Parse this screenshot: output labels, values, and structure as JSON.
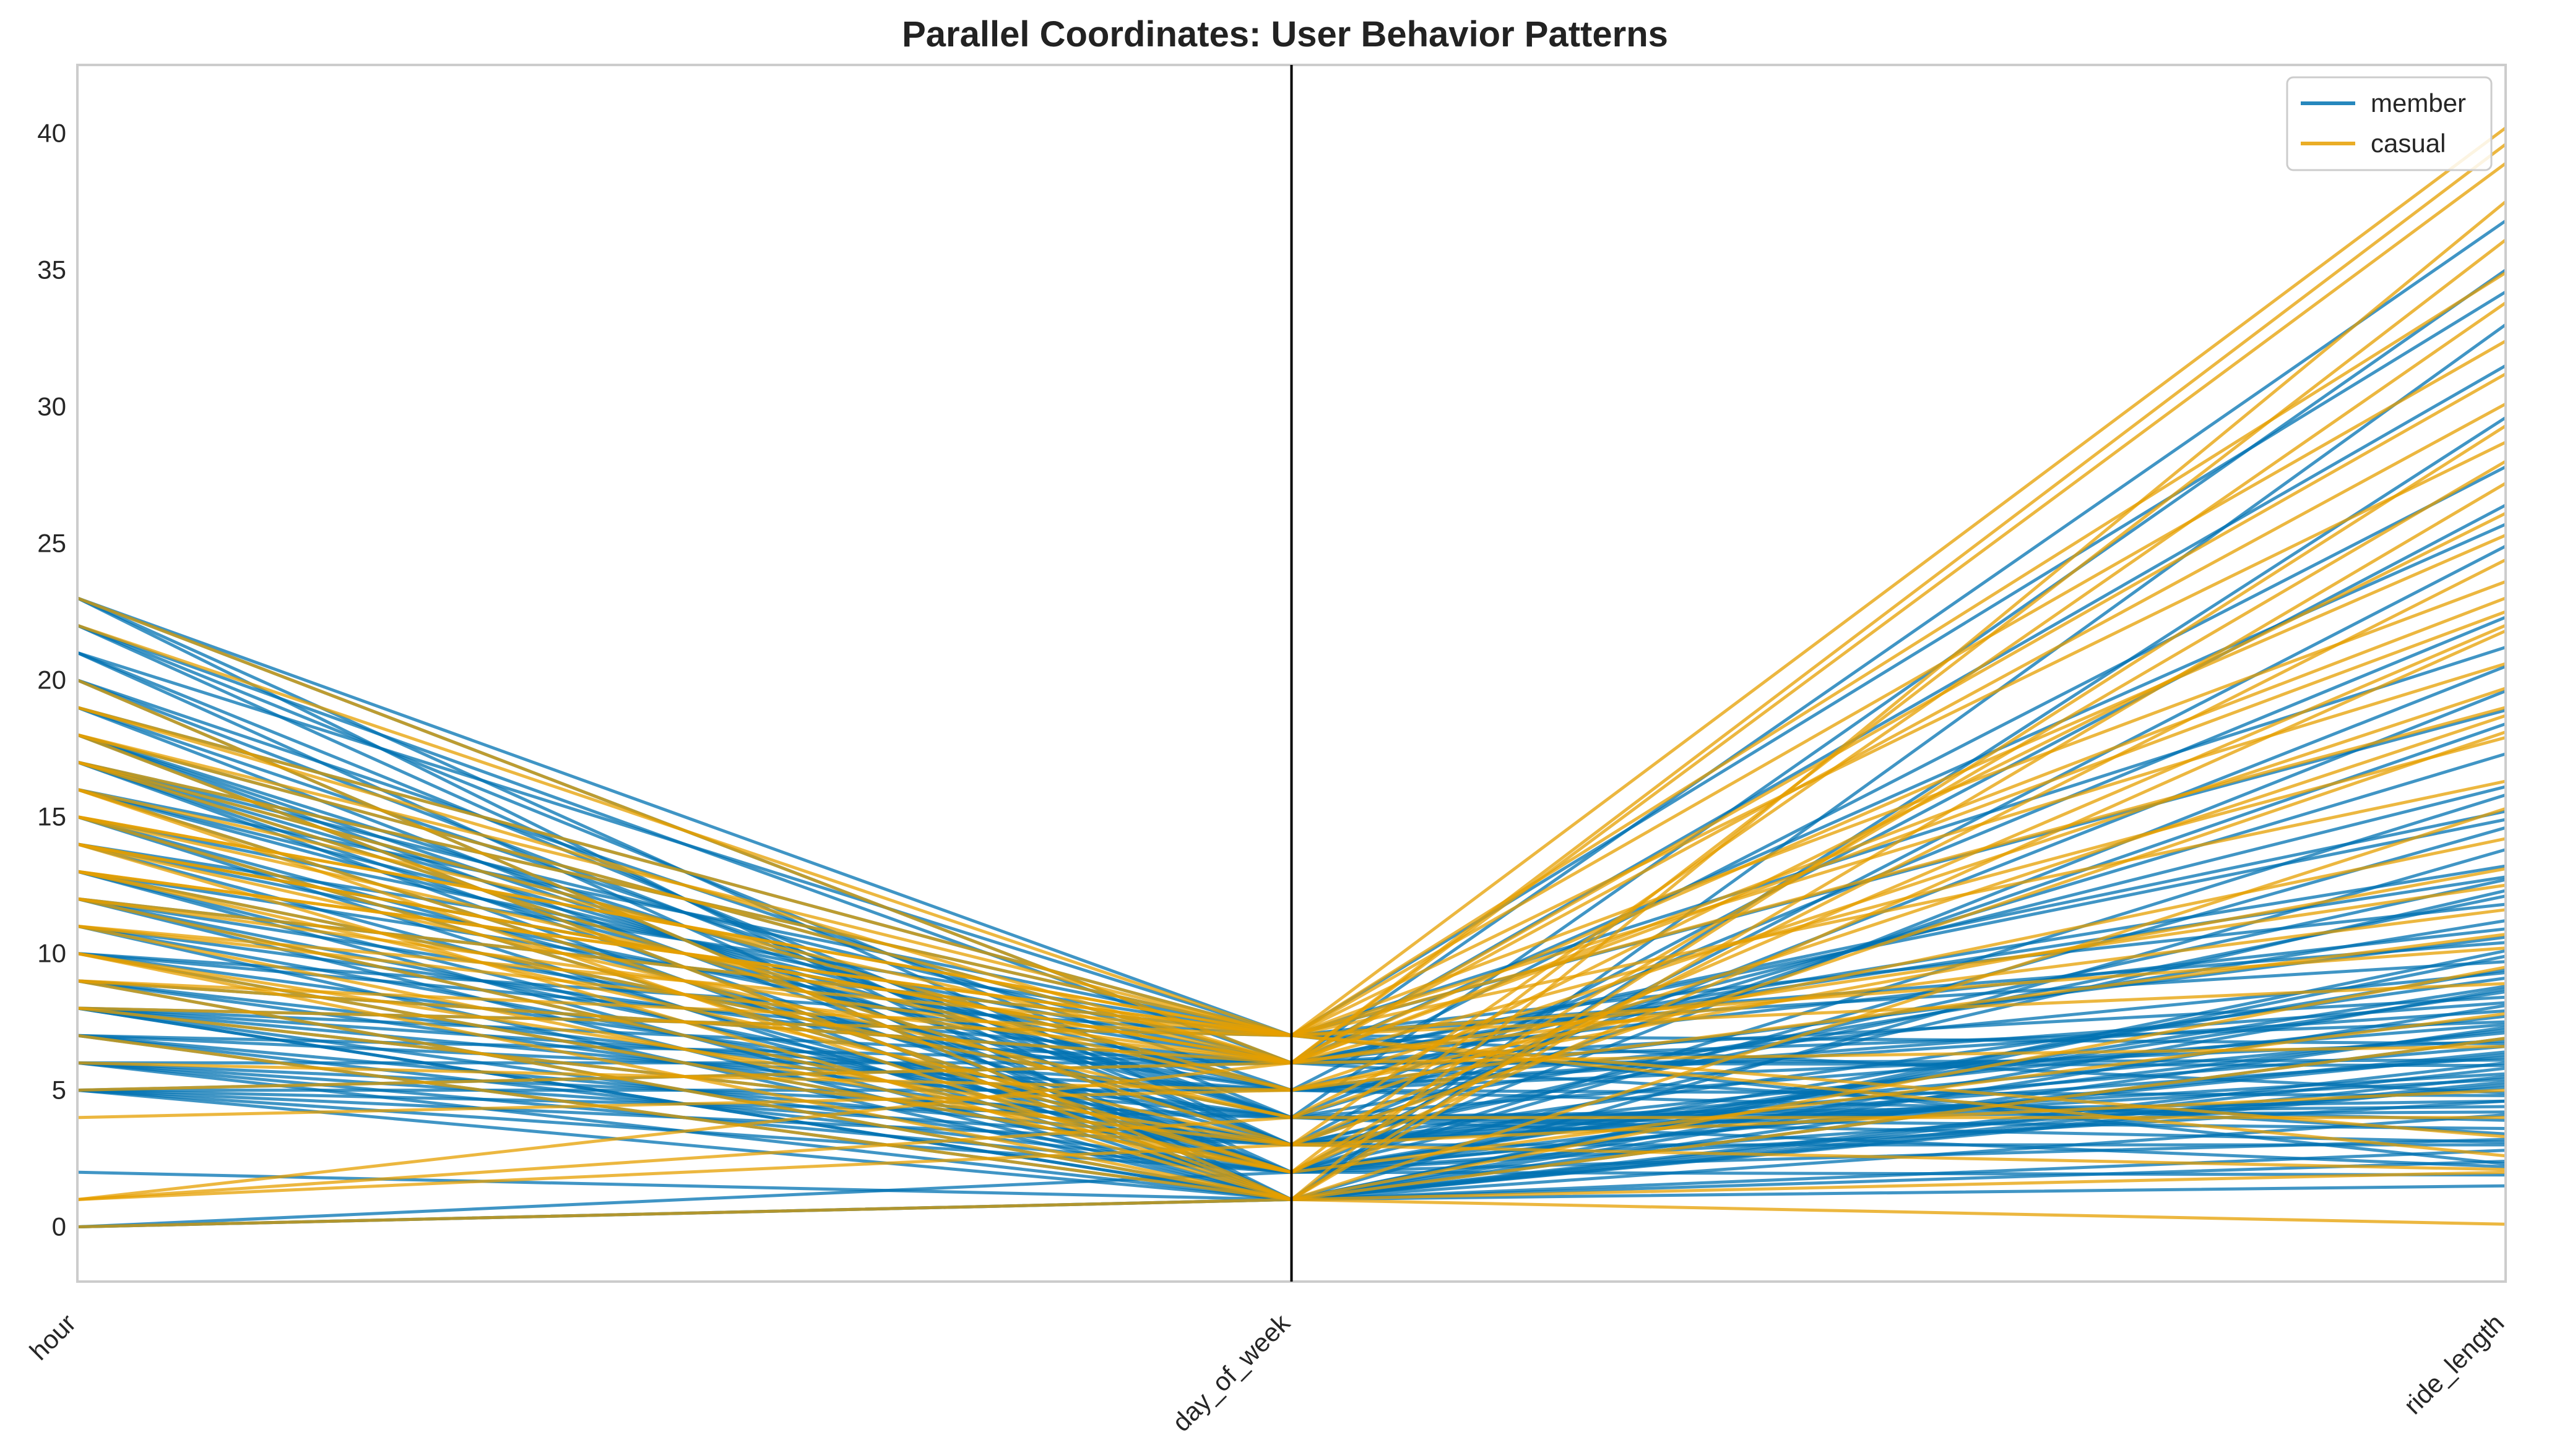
{
  "chart_data": {
    "type": "line",
    "subtype": "parallel-coordinates",
    "title": "Parallel Coordinates: User Behavior Patterns",
    "categories": [
      "hour",
      "day_of_week",
      "ride_length"
    ],
    "ylim": [
      -2,
      42.5
    ],
    "yticks": [
      0,
      5,
      10,
      15,
      20,
      25,
      30,
      35,
      40
    ],
    "grid": false,
    "legend": {
      "placement": "top-right"
    },
    "series": [
      {
        "name": "member",
        "color": "#0072B2"
      },
      {
        "name": "casual",
        "color": "#E69F00"
      }
    ],
    "sample_lines": {
      "member": [
        [
          0,
          1,
          1.5
        ],
        [
          0,
          2,
          3.2
        ],
        [
          2,
          1,
          2.4
        ],
        [
          5,
          1,
          4.1
        ],
        [
          5,
          2,
          6.3
        ],
        [
          5,
          3,
          3.0
        ],
        [
          5,
          5,
          8.2
        ],
        [
          6,
          1,
          5.5
        ],
        [
          6,
          3,
          7.1
        ],
        [
          6,
          4,
          2.2
        ],
        [
          7,
          1,
          6.0
        ],
        [
          7,
          2,
          9.4
        ],
        [
          7,
          5,
          4.8
        ],
        [
          8,
          1,
          5.2
        ],
        [
          8,
          2,
          12.3
        ],
        [
          8,
          3,
          6.6
        ],
        [
          8,
          4,
          3.1
        ],
        [
          8,
          5,
          7.9
        ],
        [
          9,
          1,
          10.1
        ],
        [
          9,
          3,
          5.4
        ],
        [
          10,
          2,
          8.8
        ],
        [
          10,
          4,
          4.2
        ],
        [
          10,
          6,
          6.1
        ],
        [
          11,
          1,
          7.3
        ],
        [
          11,
          5,
          3.9
        ],
        [
          12,
          2,
          14.6
        ],
        [
          12,
          3,
          6.2
        ],
        [
          12,
          7,
          9.7
        ],
        [
          13,
          1,
          5.8
        ],
        [
          13,
          4,
          11.2
        ],
        [
          14,
          2,
          4.6
        ],
        [
          14,
          6,
          8.4
        ],
        [
          15,
          1,
          6.9
        ],
        [
          15,
          3,
          12.7
        ],
        [
          16,
          2,
          5.1
        ],
        [
          16,
          5,
          9.3
        ],
        [
          17,
          1,
          13.8
        ],
        [
          17,
          2,
          6.4
        ],
        [
          17,
          3,
          7.7
        ],
        [
          17,
          4,
          4.4
        ],
        [
          17,
          5,
          10.6
        ],
        [
          18,
          1,
          8.1
        ],
        [
          18,
          3,
          5.6
        ],
        [
          18,
          6,
          15.2
        ],
        [
          19,
          2,
          7.2
        ],
        [
          19,
          4,
          3.6
        ],
        [
          20,
          1,
          9.9
        ],
        [
          20,
          5,
          6.8
        ],
        [
          21,
          3,
          12.1
        ],
        [
          21,
          7,
          4.9
        ],
        [
          22,
          2,
          8.6
        ],
        [
          22,
          4,
          17.3
        ],
        [
          23,
          1,
          5.3
        ],
        [
          23,
          6,
          7.5
        ],
        [
          23,
          7,
          10.4
        ],
        [
          8,
          6,
          36.8
        ],
        [
          9,
          4,
          35.0
        ],
        [
          17,
          7,
          34.2
        ],
        [
          8,
          1,
          33.0
        ],
        [
          15,
          6,
          31.5
        ],
        [
          12,
          5,
          27.8
        ],
        [
          7,
          3,
          26.4
        ],
        [
          18,
          2,
          24.9
        ],
        [
          16,
          4,
          22.3
        ],
        [
          10,
          7,
          21.2
        ],
        [
          13,
          2,
          19.6
        ],
        [
          11,
          3,
          18.4
        ],
        [
          14,
          5,
          16.1
        ],
        [
          6,
          6,
          14.9
        ],
        [
          9,
          6,
          13.2
        ],
        [
          19,
          7,
          11.8
        ],
        [
          20,
          3,
          9.1
        ],
        [
          5,
          4,
          7.4
        ],
        [
          8,
          7,
          6.7
        ],
        [
          17,
          6,
          5.9
        ],
        [
          18,
          4,
          4.6
        ],
        [
          7,
          6,
          3.4
        ],
        [
          12,
          1,
          2.8
        ],
        [
          16,
          7,
          2.3
        ],
        [
          6,
          2,
          1.9
        ],
        [
          0,
          1,
          8.7
        ],
        [
          5,
          6,
          12.8
        ],
        [
          21,
          1,
          29.6
        ],
        [
          22,
          6,
          25.7
        ],
        [
          23,
          3,
          20.5
        ],
        [
          14,
          7,
          18.9
        ],
        [
          15,
          2,
          15.8
        ],
        [
          13,
          6,
          10.9
        ]
      ],
      "casual": [
        [
          0,
          1,
          0.1
        ],
        [
          1,
          3,
          2.1
        ],
        [
          1,
          4,
          18.7
        ],
        [
          1,
          6,
          22.5
        ],
        [
          4,
          5,
          10.7
        ],
        [
          8,
          7,
          40.2
        ],
        [
          9,
          6,
          38.9
        ],
        [
          10,
          2,
          36.1
        ],
        [
          11,
          7,
          32.4
        ],
        [
          12,
          6,
          30.1
        ],
        [
          13,
          7,
          28.7
        ],
        [
          14,
          1,
          27.2
        ],
        [
          14,
          6,
          25.3
        ],
        [
          15,
          7,
          23.6
        ],
        [
          15,
          2,
          21.8
        ],
        [
          15,
          5,
          19.7
        ],
        [
          16,
          6,
          17.9
        ],
        [
          17,
          7,
          16.3
        ],
        [
          17,
          5,
          14.2
        ],
        [
          18,
          6,
          12.5
        ],
        [
          18,
          7,
          10.2
        ],
        [
          12,
          7,
          8.9
        ],
        [
          14,
          6,
          6.6
        ],
        [
          10,
          3,
          5.0
        ],
        [
          13,
          7,
          2.6
        ],
        [
          20,
          1,
          2.0
        ],
        [
          23,
          6,
          39.6
        ],
        [
          22,
          7,
          34.9
        ],
        [
          19,
          6,
          31.2
        ],
        [
          16,
          1,
          29.3
        ],
        [
          13,
          4,
          26.1
        ],
        [
          11,
          6,
          23.0
        ],
        [
          9,
          7,
          20.6
        ],
        [
          8,
          3,
          18.1
        ],
        [
          7,
          1,
          15.3
        ],
        [
          6,
          5,
          13.1
        ],
        [
          5,
          6,
          11.6
        ],
        [
          10,
          1,
          9.5
        ],
        [
          12,
          2,
          7.8
        ],
        [
          14,
          4,
          4.0
        ],
        [
          15,
          7,
          3.3
        ],
        [
          18,
          1,
          6.9
        ],
        [
          16,
          2,
          24.4
        ],
        [
          17,
          3,
          33.8
        ],
        [
          9,
          1,
          37.5
        ],
        [
          11,
          2,
          28.0
        ],
        [
          13,
          3,
          22.0
        ],
        [
          19,
          7,
          19.0
        ]
      ]
    }
  }
}
